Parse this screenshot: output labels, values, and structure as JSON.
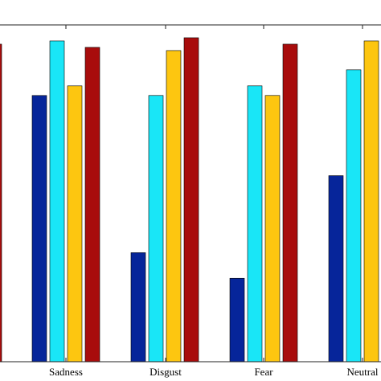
{
  "chart_data": {
    "type": "bar",
    "title": "",
    "xlabel": "",
    "ylabel": "",
    "categories": [
      "Sadness",
      "Disgust",
      "Fear",
      "Neutral"
    ],
    "series": [
      {
        "values": [
          0.83,
          0.34,
          0.26,
          0.58
        ],
        "color": "#06259a"
      },
      {
        "values": [
          1.0,
          0.83,
          0.86,
          0.91
        ],
        "color": "#19e6f7"
      },
      {
        "values": [
          0.86,
          0.97,
          0.83,
          1.0
        ],
        "color": "#fdc610"
      },
      {
        "values": [
          0.98,
          1.01,
          0.99,
          null
        ],
        "color": "#a80c0c"
      }
    ],
    "ylim": [
      0,
      1.05
    ],
    "grid": false,
    "legend": "none",
    "partial_bar_left": {
      "value": 0.99,
      "color": "#a80c0c"
    }
  }
}
